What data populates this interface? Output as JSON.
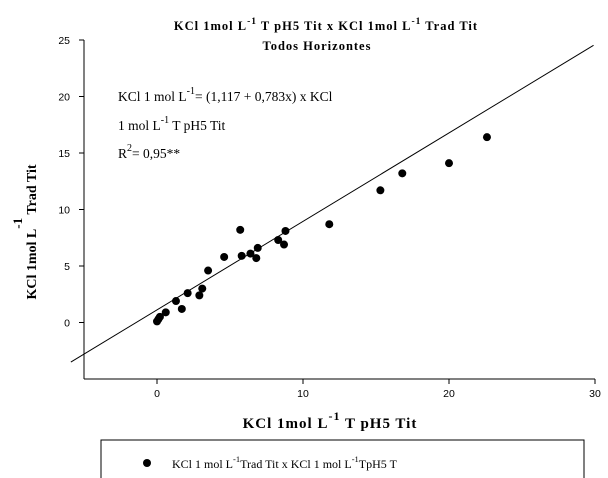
{
  "chart_data": {
    "type": "scatter",
    "title_line1": {
      "main": "KCl 1mol L",
      "sup": "-1",
      "mid": " T pH5 Tit x KCl 1mol L",
      "sup2": "-1",
      "end": " Trad Tit"
    },
    "title_line2": "Todos Horizontes",
    "xlabel": {
      "main": "KCl 1mol L",
      "sup": "-1",
      "end": " T pH5 Tit"
    },
    "ylabel": {
      "main": "KCl 1mol L",
      "sup": "-1",
      "end": " Trad Tit"
    },
    "xlim": [
      -5,
      30
    ],
    "ylim": [
      -5,
      25
    ],
    "xticks": [
      0,
      10,
      20,
      30
    ],
    "yticks": [
      0,
      5,
      10,
      15,
      20,
      25
    ],
    "grid": false,
    "legend_position": "bottom",
    "points": [
      {
        "x": 0.0,
        "y": 0.1
      },
      {
        "x": 0.1,
        "y": 0.3
      },
      {
        "x": 0.2,
        "y": 0.5
      },
      {
        "x": 0.6,
        "y": 0.9
      },
      {
        "x": 1.3,
        "y": 1.9
      },
      {
        "x": 1.7,
        "y": 1.2
      },
      {
        "x": 2.1,
        "y": 2.6
      },
      {
        "x": 2.9,
        "y": 2.4
      },
      {
        "x": 3.1,
        "y": 3.0
      },
      {
        "x": 3.5,
        "y": 4.6
      },
      {
        "x": 4.6,
        "y": 5.8
      },
      {
        "x": 5.7,
        "y": 8.2
      },
      {
        "x": 5.8,
        "y": 5.9
      },
      {
        "x": 6.4,
        "y": 6.1
      },
      {
        "x": 6.8,
        "y": 5.7
      },
      {
        "x": 6.9,
        "y": 6.6
      },
      {
        "x": 8.3,
        "y": 7.3
      },
      {
        "x": 8.7,
        "y": 6.9
      },
      {
        "x": 8.8,
        "y": 8.1
      },
      {
        "x": 11.8,
        "y": 8.7
      },
      {
        "x": 15.3,
        "y": 11.7
      },
      {
        "x": 16.8,
        "y": 13.2
      },
      {
        "x": 20.0,
        "y": 14.1
      },
      {
        "x": 22.6,
        "y": 16.4
      }
    ],
    "regression": {
      "intercept": 1.117,
      "slope": 0.783
    },
    "annotation": {
      "line1_a": "KCl 1 mol L",
      "line1_sup": "-1",
      "line1_b": "= (1,117 + 0,783x) x KCl",
      "line2_a": "1 mol L",
      "line2_sup": "-1",
      "line2_b": " T pH5 Tit",
      "line3_a": "R",
      "line3_sup": "2",
      "line3_b": "= 0,95**"
    },
    "legend": {
      "part1": "KCl 1 mol L",
      "sup1": "-1",
      "part2": "Trad Tit x KCl 1 mol L",
      "sup2": "-1",
      "part3": "TpH5 T"
    },
    "colors": {
      "marker": "#000000",
      "line": "#000000",
      "background": "#ffffff"
    }
  }
}
